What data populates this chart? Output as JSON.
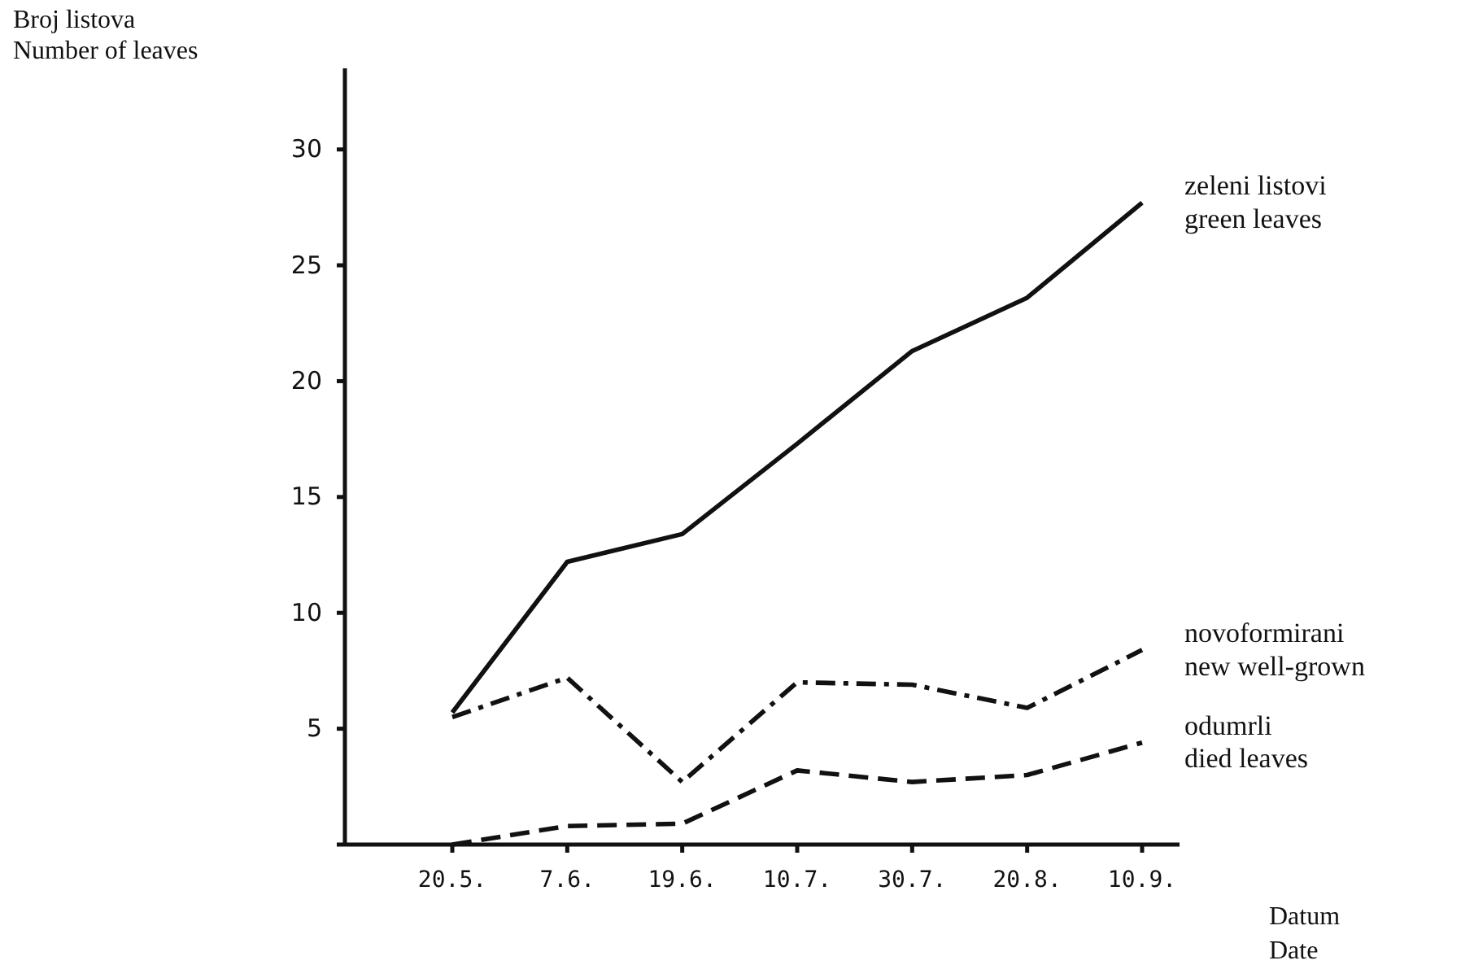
{
  "chart_data": {
    "type": "line",
    "ylabel": "Broj listova\nNumber of leaves",
    "xlabel": "Datum\nDate",
    "categories": [
      "20.5.",
      "7.6.",
      "19.6.",
      "10.7.",
      "30.7.",
      "20.8.",
      "10.9."
    ],
    "series": [
      {
        "name": "zeleni listovi\ngreen leaves",
        "color": "#111111",
        "line_style": "solid",
        "values": [
          5.7,
          12.2,
          13.4,
          17.3,
          21.3,
          23.6,
          27.7
        ]
      },
      {
        "name": "novoformirani\nnew well-grown",
        "color": "#111111",
        "line_style": "dashdot",
        "values": [
          5.5,
          7.2,
          2.7,
          7.0,
          6.9,
          5.9,
          8.4
        ]
      },
      {
        "name": "odumrli\ndied leaves",
        "color": "#111111",
        "line_style": "dashed",
        "values": [
          0,
          0.8,
          0.9,
          3.2,
          2.7,
          3.0,
          4.4
        ]
      }
    ],
    "ylim": [
      0,
      33.5
    ],
    "yticks": [
      {
        "value": 0,
        "label": null
      },
      5,
      10,
      15,
      20,
      25,
      30
    ],
    "grid": false,
    "legend": false,
    "marker": "none"
  }
}
